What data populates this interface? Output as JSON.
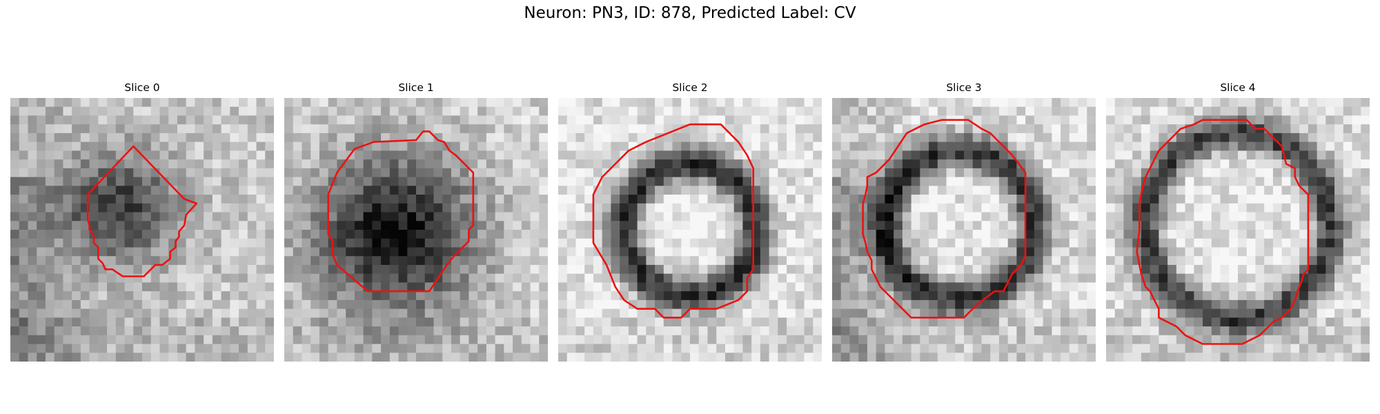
{
  "figure": {
    "title": "Neuron: PN3, ID: 878, Predicted Label: CV",
    "contour_color": "#ee1111"
  },
  "slices": [
    {
      "title": "Slice 0"
    },
    {
      "title": "Slice 1"
    },
    {
      "title": "Slice 2"
    },
    {
      "title": "Slice 3"
    },
    {
      "title": "Slice 4"
    }
  ]
}
